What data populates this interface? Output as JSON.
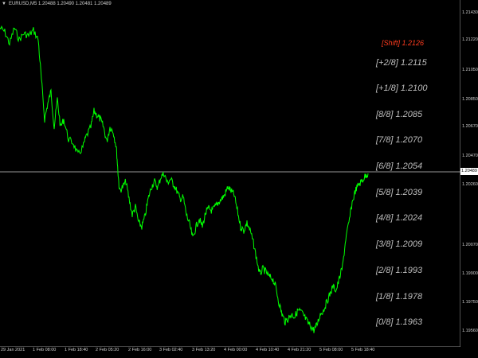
{
  "header": {
    "menu_icon": "triangle-down-icon",
    "symbol": "EURUSD,M5",
    "ohlc": "1.20488 1.20490 1.20481 1.20489"
  },
  "murrey_labels": [
    {
      "text": "[Shift] 1.2126",
      "color": "#ff3b1e"
    },
    {
      "text": "[+2/8] 1.2115"
    },
    {
      "text": "[+1/8] 1.2100"
    },
    {
      "text": "[8/8] 1.2085"
    },
    {
      "text": "[7/8] 1.2070"
    },
    {
      "text": "[6/8] 1.2054"
    },
    {
      "text": "[5/8] 1.2039"
    },
    {
      "text": "[4/8] 1.2024"
    },
    {
      "text": "[3/8] 1.2009"
    },
    {
      "text": "[2/8] 1.1993"
    },
    {
      "text": "[1/8] 1.1978"
    },
    {
      "text": "[0/8] 1.1963"
    }
  ],
  "price_axis": [
    "1.21430",
    "1.21220",
    "1.21050",
    "1.20850",
    "1.20670",
    "1.20470",
    "1.20260",
    "1.20070",
    "1.19900",
    "1.19750",
    "1.19560"
  ],
  "current_price": "1.20489",
  "time_axis": [
    "29 Jan 2021",
    "1 Feb 08:00",
    "1 Feb 18:40",
    "2 Feb 05:20",
    "2 Feb 16:00",
    "3 Feb 02:40",
    "3 Feb 13:20",
    "4 Feb 00:00",
    "4 Feb 10:40",
    "4 Feb 21:20",
    "5 Feb 08:00",
    "5 Feb 18:40"
  ],
  "colors": {
    "background": "#000000",
    "price_line": "#00ff00",
    "text": "#cfcfcf",
    "bid_line": "#c8c8c8"
  }
}
